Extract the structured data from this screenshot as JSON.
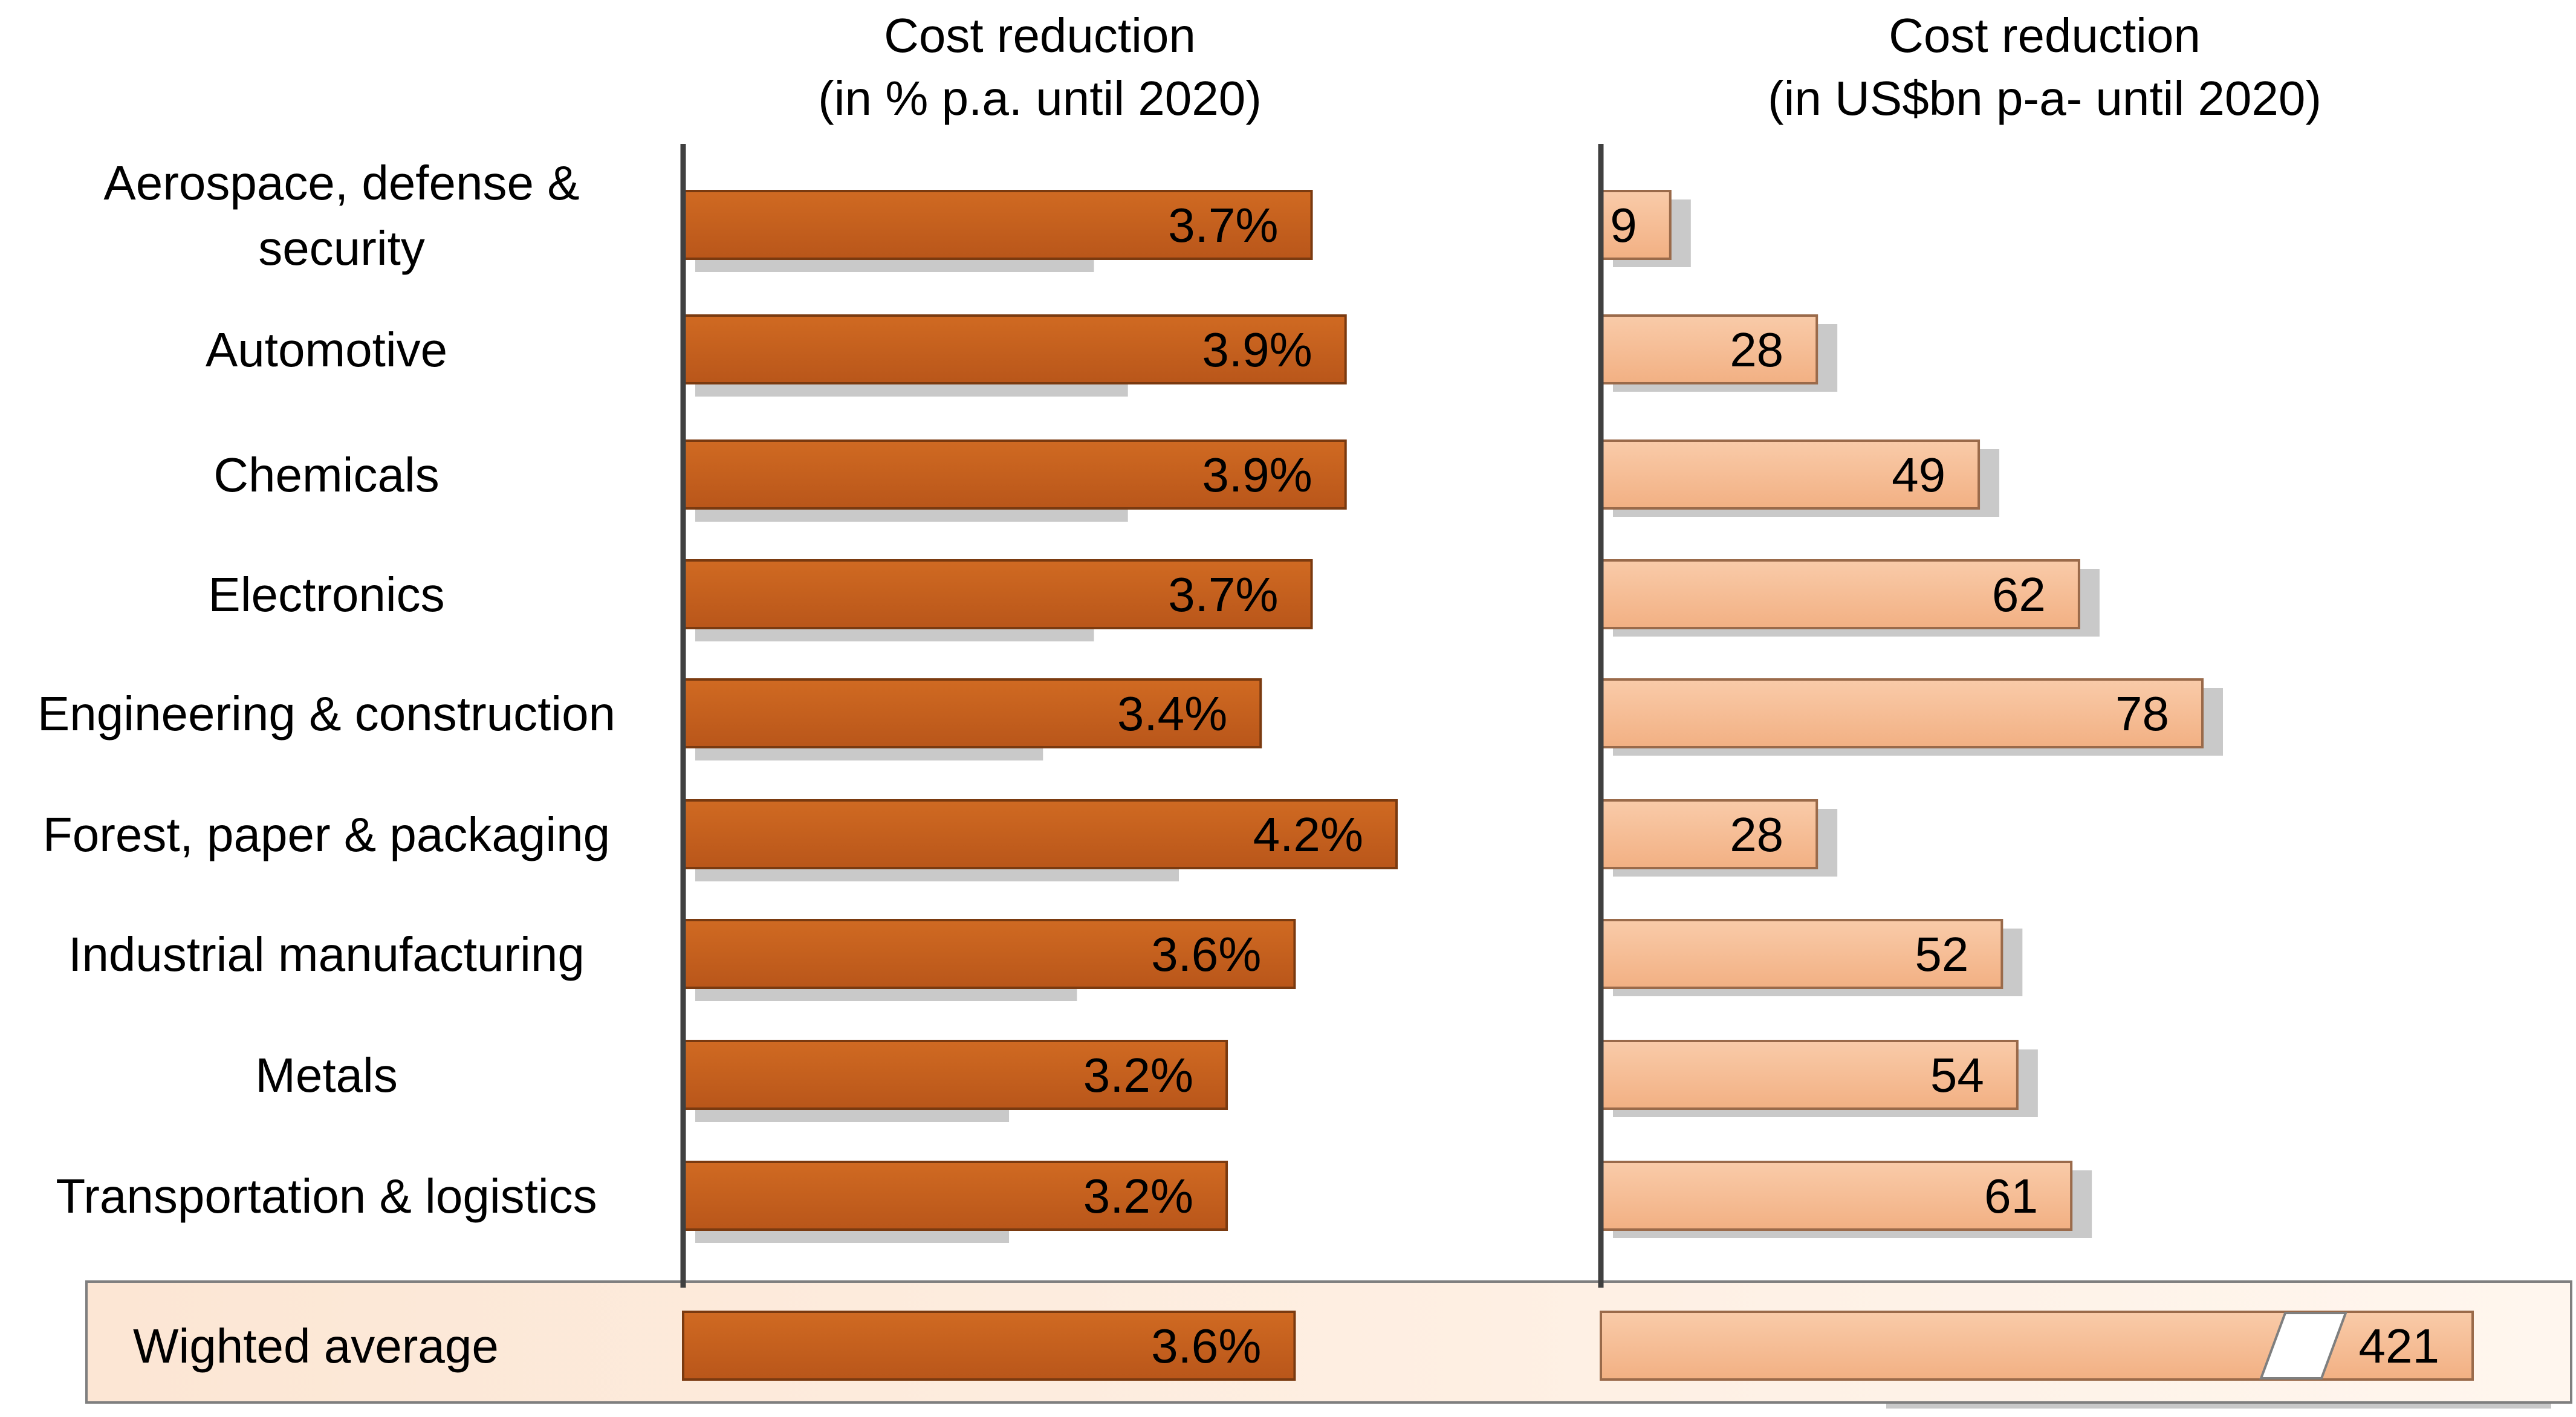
{
  "chart_data": [
    {
      "type": "bar",
      "orientation": "horizontal",
      "title": "Cost reduction",
      "subtitle": "(in % p.a. until 2020)",
      "categories": [
        "Aerospace, defense  & security",
        "Automotive",
        "Chemicals",
        "Electronics",
        "Engineering & construction",
        "Forest, paper & packaging",
        "Industrial manufacturing",
        "Metals",
        "Transportation & logistics"
      ],
      "values": [
        3.7,
        3.9,
        3.9,
        3.7,
        3.4,
        4.2,
        3.6,
        3.2,
        3.2
      ],
      "data_labels": [
        "3.7%",
        "3.9%",
        "3.9%",
        "3.7%",
        "3.4%",
        "4.2%",
        "3.6%",
        "3.2%",
        "3.2%"
      ],
      "xlim": [
        0,
        5.2
      ],
      "summary": {
        "label": "Wighted average",
        "value": 3.6,
        "data_label": "3.6%"
      },
      "bar_color": "#C9601C"
    },
    {
      "type": "bar",
      "orientation": "horizontal",
      "title": "Cost reduction",
      "subtitle": "(in US$bn p-a- until 2020)",
      "categories": [
        "Aerospace, defense  & security",
        "Automotive",
        "Chemicals",
        "Electronics",
        "Engineering & construction",
        "Forest, paper & packaging",
        "Industrial manufacturing",
        "Metals",
        "Transportation & logistics"
      ],
      "values": [
        9,
        28,
        49,
        62,
        78,
        28,
        52,
        54,
        61
      ],
      "data_labels": [
        "9",
        "28",
        "49",
        "62",
        "78",
        "28",
        "52",
        "54",
        "61"
      ],
      "xlim": [
        0,
        100
      ],
      "summary": {
        "label": "Wighted average",
        "value": 421,
        "data_label": "421",
        "axis_break": true
      },
      "bar_color": "#F6BE97"
    }
  ]
}
